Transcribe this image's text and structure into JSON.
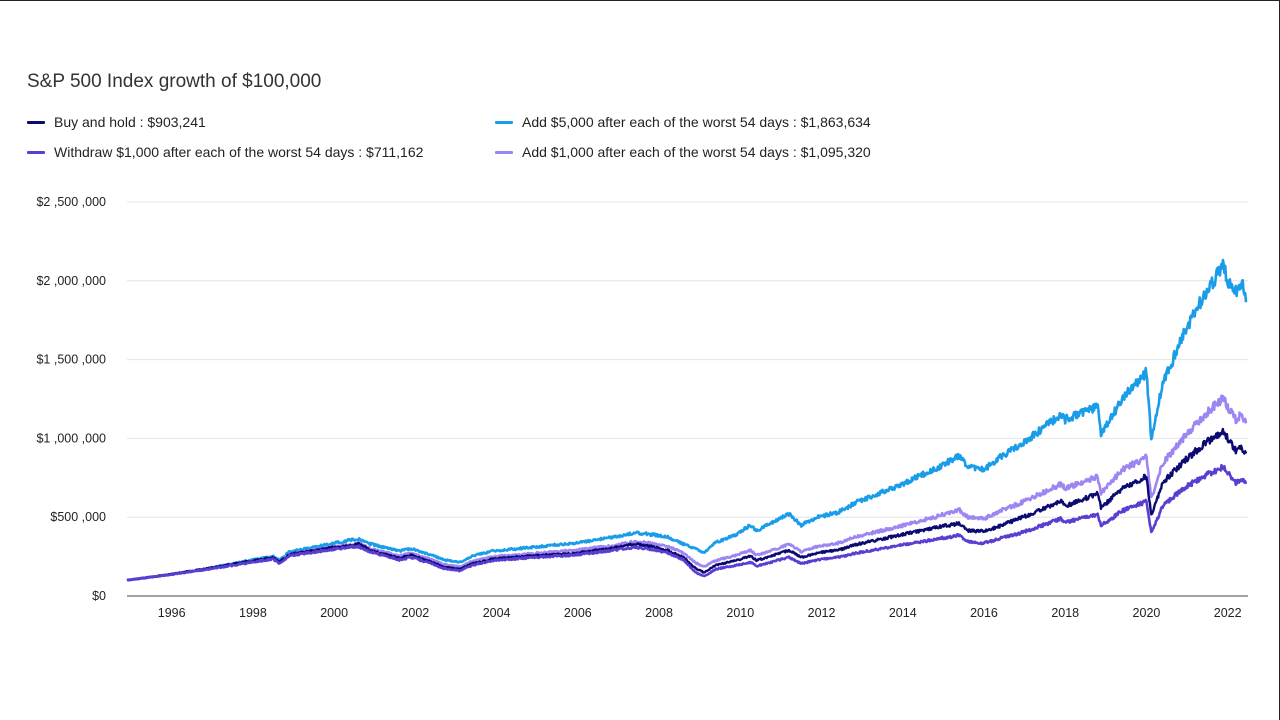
{
  "chart_data": {
    "type": "line",
    "title": "S&P 500 Index growth of $100,000",
    "xlabel": "",
    "ylabel": "",
    "xlim": [
      1995.0,
      2022.6
    ],
    "ylim": [
      0,
      2500000
    ],
    "grid": {
      "horizontal": true,
      "vertical": false
    },
    "legend_position": "top",
    "y_ticks": [
      {
        "value": 0,
        "label": "$0"
      },
      {
        "value": 500000,
        "label": "$500 ,000"
      },
      {
        "value": 1000000,
        "label": "$1 ,000 ,000"
      },
      {
        "value": 1500000,
        "label": "$1 ,500 ,000"
      },
      {
        "value": 2000000,
        "label": "$2 ,000 ,000"
      },
      {
        "value": 2500000,
        "label": "$2 ,500 ,000"
      }
    ],
    "x_ticks": [
      "1996",
      "1998",
      "2000",
      "2002",
      "2004",
      "2006",
      "2008",
      "2010",
      "2012",
      "2014",
      "2016",
      "2018",
      "2020",
      "2022"
    ],
    "series": [
      {
        "name": "Buy and hold : $903,241",
        "color": "#0b0a70",
        "points": [
          [
            1995.0,
            100000
          ],
          [
            1996.0,
            135000
          ],
          [
            1997.0,
            175000
          ],
          [
            1998.0,
            220000
          ],
          [
            1998.6,
            245000
          ],
          [
            1998.75,
            215000
          ],
          [
            1999.0,
            265000
          ],
          [
            2000.0,
            305000
          ],
          [
            2000.5,
            320000
          ],
          [
            2000.7,
            330000
          ],
          [
            2001.0,
            290000
          ],
          [
            2001.7,
            240000
          ],
          [
            2002.0,
            260000
          ],
          [
            2002.5,
            215000
          ],
          [
            2002.8,
            185000
          ],
          [
            2003.2,
            170000
          ],
          [
            2003.5,
            205000
          ],
          [
            2004.0,
            235000
          ],
          [
            2005.0,
            255000
          ],
          [
            2006.0,
            270000
          ],
          [
            2007.0,
            305000
          ],
          [
            2007.5,
            330000
          ],
          [
            2007.8,
            320000
          ],
          [
            2008.3,
            290000
          ],
          [
            2008.7,
            245000
          ],
          [
            2009.0,
            175000
          ],
          [
            2009.2,
            150000
          ],
          [
            2009.5,
            195000
          ],
          [
            2010.0,
            225000
          ],
          [
            2010.35,
            255000
          ],
          [
            2010.5,
            225000
          ],
          [
            2011.0,
            265000
          ],
          [
            2011.3,
            290000
          ],
          [
            2011.6,
            245000
          ],
          [
            2012.0,
            275000
          ],
          [
            2012.5,
            290000
          ],
          [
            2013.0,
            330000
          ],
          [
            2014.0,
            385000
          ],
          [
            2015.0,
            440000
          ],
          [
            2015.5,
            460000
          ],
          [
            2015.7,
            415000
          ],
          [
            2016.1,
            410000
          ],
          [
            2016.5,
            445000
          ],
          [
            2017.0,
            495000
          ],
          [
            2018.0,
            600000
          ],
          [
            2018.1,
            570000
          ],
          [
            2018.9,
            650000
          ],
          [
            2018.98,
            560000
          ],
          [
            2019.5,
            680000
          ],
          [
            2020.1,
            760000
          ],
          [
            2020.22,
            510000
          ],
          [
            2020.5,
            720000
          ],
          [
            2021.0,
            850000
          ],
          [
            2021.5,
            960000
          ],
          [
            2022.0,
            1050000
          ],
          [
            2022.1,
            1000000
          ],
          [
            2022.3,
            920000
          ],
          [
            2022.45,
            940000
          ],
          [
            2022.55,
            903241
          ]
        ]
      },
      {
        "name": "Add $5,000 after each of the worst 54 days : $1,863,634",
        "color": "#1a9de8",
        "points": [
          [
            1995.0,
            100000
          ],
          [
            1996.0,
            135000
          ],
          [
            1997.0,
            175000
          ],
          [
            1998.0,
            225000
          ],
          [
            1998.6,
            250000
          ],
          [
            1998.75,
            230000
          ],
          [
            1999.0,
            280000
          ],
          [
            2000.0,
            330000
          ],
          [
            2000.5,
            355000
          ],
          [
            2000.7,
            360000
          ],
          [
            2001.0,
            330000
          ],
          [
            2001.7,
            285000
          ],
          [
            2002.0,
            300000
          ],
          [
            2002.5,
            260000
          ],
          [
            2002.8,
            230000
          ],
          [
            2003.2,
            215000
          ],
          [
            2003.5,
            255000
          ],
          [
            2004.0,
            285000
          ],
          [
            2005.0,
            310000
          ],
          [
            2006.0,
            335000
          ],
          [
            2007.0,
            375000
          ],
          [
            2007.5,
            400000
          ],
          [
            2007.8,
            395000
          ],
          [
            2008.3,
            375000
          ],
          [
            2008.7,
            330000
          ],
          [
            2009.0,
            300000
          ],
          [
            2009.2,
            275000
          ],
          [
            2009.5,
            340000
          ],
          [
            2010.0,
            390000
          ],
          [
            2010.35,
            450000
          ],
          [
            2010.5,
            415000
          ],
          [
            2011.0,
            480000
          ],
          [
            2011.3,
            520000
          ],
          [
            2011.6,
            450000
          ],
          [
            2012.0,
            500000
          ],
          [
            2012.5,
            530000
          ],
          [
            2013.0,
            600000
          ],
          [
            2014.0,
            700000
          ],
          [
            2015.0,
            820000
          ],
          [
            2015.5,
            890000
          ],
          [
            2015.7,
            820000
          ],
          [
            2016.1,
            800000
          ],
          [
            2016.5,
            880000
          ],
          [
            2017.0,
            960000
          ],
          [
            2018.0,
            1150000
          ],
          [
            2018.1,
            1120000
          ],
          [
            2018.9,
            1200000
          ],
          [
            2018.98,
            1020000
          ],
          [
            2019.5,
            1250000
          ],
          [
            2020.1,
            1420000
          ],
          [
            2020.22,
            990000
          ],
          [
            2020.5,
            1350000
          ],
          [
            2021.0,
            1650000
          ],
          [
            2021.5,
            1900000
          ],
          [
            2022.0,
            2100000
          ],
          [
            2022.1,
            2000000
          ],
          [
            2022.3,
            1930000
          ],
          [
            2022.45,
            2000000
          ],
          [
            2022.55,
            1863634
          ]
        ]
      },
      {
        "name": "Withdraw $1,000 after each of the worst 54 days : $711,162",
        "color": "#5a3ed1",
        "points": [
          [
            1995.0,
            100000
          ],
          [
            1996.0,
            133000
          ],
          [
            1997.0,
            170000
          ],
          [
            1998.0,
            210000
          ],
          [
            1998.6,
            235000
          ],
          [
            1998.75,
            205000
          ],
          [
            1999.0,
            255000
          ],
          [
            2000.0,
            295000
          ],
          [
            2000.5,
            310000
          ],
          [
            2000.7,
            315000
          ],
          [
            2001.0,
            280000
          ],
          [
            2001.7,
            230000
          ],
          [
            2002.0,
            245000
          ],
          [
            2002.5,
            205000
          ],
          [
            2002.8,
            175000
          ],
          [
            2003.2,
            160000
          ],
          [
            2003.5,
            195000
          ],
          [
            2004.0,
            225000
          ],
          [
            2005.0,
            245000
          ],
          [
            2006.0,
            260000
          ],
          [
            2007.0,
            290000
          ],
          [
            2007.5,
            310000
          ],
          [
            2007.8,
            300000
          ],
          [
            2008.3,
            275000
          ],
          [
            2008.7,
            230000
          ],
          [
            2009.0,
            150000
          ],
          [
            2009.2,
            125000
          ],
          [
            2009.5,
            170000
          ],
          [
            2010.0,
            195000
          ],
          [
            2010.35,
            215000
          ],
          [
            2010.5,
            190000
          ],
          [
            2011.0,
            225000
          ],
          [
            2011.3,
            245000
          ],
          [
            2011.6,
            205000
          ],
          [
            2012.0,
            230000
          ],
          [
            2012.5,
            245000
          ],
          [
            2013.0,
            275000
          ],
          [
            2014.0,
            320000
          ],
          [
            2015.0,
            365000
          ],
          [
            2015.5,
            385000
          ],
          [
            2015.7,
            345000
          ],
          [
            2016.1,
            335000
          ],
          [
            2016.5,
            365000
          ],
          [
            2017.0,
            400000
          ],
          [
            2018.0,
            490000
          ],
          [
            2018.1,
            465000
          ],
          [
            2018.9,
            520000
          ],
          [
            2018.98,
            445000
          ],
          [
            2019.5,
            540000
          ],
          [
            2020.1,
            600000
          ],
          [
            2020.22,
            400000
          ],
          [
            2020.5,
            570000
          ],
          [
            2021.0,
            680000
          ],
          [
            2021.5,
            760000
          ],
          [
            2022.0,
            820000
          ],
          [
            2022.1,
            780000
          ],
          [
            2022.3,
            720000
          ],
          [
            2022.45,
            735000
          ],
          [
            2022.55,
            711162
          ]
        ]
      },
      {
        "name": "Add $1,000 after each of the worst 54 days : $1,095,320",
        "color": "#9d85f2",
        "points": [
          [
            1995.0,
            100000
          ],
          [
            1996.0,
            134000
          ],
          [
            1997.0,
            172000
          ],
          [
            1998.0,
            215000
          ],
          [
            1998.6,
            240000
          ],
          [
            1998.75,
            215000
          ],
          [
            1999.0,
            265000
          ],
          [
            2000.0,
            310000
          ],
          [
            2000.5,
            325000
          ],
          [
            2000.7,
            335000
          ],
          [
            2001.0,
            300000
          ],
          [
            2001.7,
            255000
          ],
          [
            2002.0,
            270000
          ],
          [
            2002.5,
            230000
          ],
          [
            2002.8,
            200000
          ],
          [
            2003.2,
            185000
          ],
          [
            2003.5,
            220000
          ],
          [
            2004.0,
            250000
          ],
          [
            2005.0,
            270000
          ],
          [
            2006.0,
            290000
          ],
          [
            2007.0,
            320000
          ],
          [
            2007.5,
            345000
          ],
          [
            2007.8,
            340000
          ],
          [
            2008.3,
            315000
          ],
          [
            2008.7,
            275000
          ],
          [
            2009.0,
            210000
          ],
          [
            2009.2,
            185000
          ],
          [
            2009.5,
            225000
          ],
          [
            2010.0,
            260000
          ],
          [
            2010.35,
            290000
          ],
          [
            2010.5,
            260000
          ],
          [
            2011.0,
            300000
          ],
          [
            2011.3,
            330000
          ],
          [
            2011.6,
            280000
          ],
          [
            2012.0,
            315000
          ],
          [
            2012.5,
            335000
          ],
          [
            2013.0,
            380000
          ],
          [
            2014.0,
            440000
          ],
          [
            2015.0,
            510000
          ],
          [
            2015.5,
            545000
          ],
          [
            2015.7,
            500000
          ],
          [
            2016.1,
            490000
          ],
          [
            2016.5,
            540000
          ],
          [
            2017.0,
            590000
          ],
          [
            2018.0,
            710000
          ],
          [
            2018.1,
            680000
          ],
          [
            2018.9,
            760000
          ],
          [
            2018.98,
            650000
          ],
          [
            2019.5,
            800000
          ],
          [
            2020.1,
            880000
          ],
          [
            2020.22,
            620000
          ],
          [
            2020.5,
            840000
          ],
          [
            2021.0,
            1000000
          ],
          [
            2021.5,
            1140000
          ],
          [
            2022.0,
            1260000
          ],
          [
            2022.1,
            1200000
          ],
          [
            2022.3,
            1120000
          ],
          [
            2022.45,
            1150000
          ],
          [
            2022.55,
            1095320
          ]
        ]
      }
    ]
  }
}
